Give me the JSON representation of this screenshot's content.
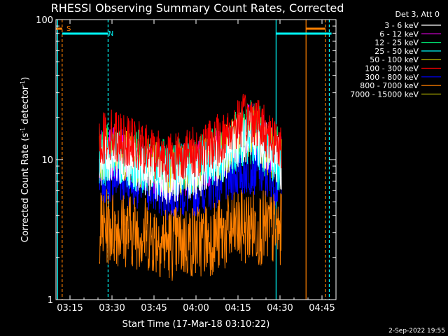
{
  "chart_data": {
    "type": "line",
    "title": "RHESSI Observing Summary Count Rates, Corrected",
    "xlabel": "Start Time (17-Mar-18 03:10:22)",
    "ylabel_main": "Corrected Count Rate (s",
    "ylabel_sup1": "-1",
    "ylabel_mid": " detector",
    "ylabel_sup2": "-1",
    "ylabel_end": ")",
    "y_scale": "log",
    "ylim": [
      1,
      100
    ],
    "x_range_minutes": [
      0,
      100
    ],
    "x_ticks": [
      {
        "label": "03:15",
        "minute": 5
      },
      {
        "label": "03:30",
        "minute": 20
      },
      {
        "label": "03:45",
        "minute": 35
      },
      {
        "label": "04:00",
        "minute": 50
      },
      {
        "label": "04:15",
        "minute": 65
      },
      {
        "label": "04:30",
        "minute": 80
      },
      {
        "label": "04:45",
        "minute": 95
      }
    ],
    "y_ticks": [
      {
        "label": "100",
        "value": 100
      },
      {
        "label": "10",
        "value": 10
      },
      {
        "label": "1",
        "value": 1
      }
    ],
    "legend_title": "Det 3, Att 0",
    "legend_placement": "right",
    "data_interval_minutes": [
      15.5,
      80.5
    ],
    "series": [
      {
        "name": "3 - 6 keV",
        "color": "#ffffff",
        "envelope": [
          [
            15.5,
            12
          ],
          [
            20,
            13
          ],
          [
            30,
            11
          ],
          [
            40,
            9
          ],
          [
            50,
            10
          ],
          [
            60,
            13
          ],
          [
            65,
            17
          ],
          [
            70,
            19
          ],
          [
            75,
            15
          ],
          [
            80.5,
            11
          ]
        ]
      },
      {
        "name": "6 - 12 keV",
        "color": "#ff00ff",
        "envelope": [
          [
            15.5,
            13
          ],
          [
            20,
            14
          ],
          [
            30,
            12
          ],
          [
            40,
            10
          ],
          [
            50,
            11
          ],
          [
            60,
            14
          ],
          [
            65,
            18
          ],
          [
            70,
            21
          ],
          [
            75,
            16
          ],
          [
            80.5,
            12
          ]
        ]
      },
      {
        "name": "12 - 25 keV",
        "color": "#00e070",
        "envelope": [
          [
            15.5,
            14
          ],
          [
            20,
            15
          ],
          [
            30,
            13
          ],
          [
            40,
            11
          ],
          [
            50,
            12
          ],
          [
            60,
            15
          ],
          [
            65,
            20
          ],
          [
            70,
            23
          ],
          [
            75,
            17
          ],
          [
            80.5,
            13
          ]
        ]
      },
      {
        "name": "25 - 50 keV",
        "color": "#00ffff",
        "envelope": [
          [
            15.5,
            12
          ],
          [
            20,
            13
          ],
          [
            30,
            11
          ],
          [
            40,
            10
          ],
          [
            50,
            11
          ],
          [
            60,
            13
          ],
          [
            65,
            16
          ],
          [
            70,
            18
          ],
          [
            75,
            14
          ],
          [
            80.5,
            11
          ]
        ]
      },
      {
        "name": "50 - 100 keV",
        "color": "#d8d800",
        "envelope": [
          [
            15.5,
            13
          ],
          [
            20,
            14
          ],
          [
            30,
            12
          ],
          [
            40,
            10
          ],
          [
            50,
            11
          ],
          [
            60,
            14
          ],
          [
            65,
            18
          ],
          [
            70,
            20
          ],
          [
            75,
            15
          ],
          [
            80.5,
            12
          ]
        ]
      },
      {
        "name": "100 - 300 keV",
        "color": "#ff0000",
        "envelope": [
          [
            15.5,
            17
          ],
          [
            20,
            19
          ],
          [
            30,
            15
          ],
          [
            40,
            13
          ],
          [
            50,
            14
          ],
          [
            60,
            18
          ],
          [
            65,
            23
          ],
          [
            70,
            25
          ],
          [
            75,
            20
          ],
          [
            80.5,
            15
          ]
        ]
      },
      {
        "name": "300 - 800 keV",
        "color": "#0000ff",
        "envelope": [
          [
            15.5,
            9
          ],
          [
            20,
            9.5
          ],
          [
            30,
            8.5
          ],
          [
            40,
            7
          ],
          [
            50,
            7.5
          ],
          [
            60,
            9
          ],
          [
            65,
            10
          ],
          [
            70,
            11
          ],
          [
            75,
            9.5
          ],
          [
            80.5,
            8
          ]
        ]
      },
      {
        "name": "800 - 7000 keV",
        "color": "#ff8000",
        "envelope": [
          [
            15.5,
            4.5
          ],
          [
            20,
            4.5
          ],
          [
            30,
            4.2
          ],
          [
            40,
            3.5
          ],
          [
            50,
            3.6
          ],
          [
            60,
            4
          ],
          [
            65,
            4.4
          ],
          [
            70,
            4.6
          ],
          [
            75,
            4.4
          ],
          [
            80.5,
            4.2
          ]
        ]
      },
      {
        "name": "7000 - 15000 keV",
        "color": "#a0a000",
        "envelope": []
      }
    ],
    "flag_lines": [
      {
        "minute": 0.6,
        "color": "#00ffff",
        "style": "solid"
      },
      {
        "minute": 2.2,
        "color": "#ff8000",
        "style": "dashed"
      },
      {
        "minute": 18.6,
        "color": "#00ffff",
        "style": "dashed"
      },
      {
        "minute": 78.6,
        "color": "#00ffff",
        "style": "solid"
      },
      {
        "minute": 89.3,
        "color": "#ff8000",
        "style": "solid"
      },
      {
        "minute": 96.2,
        "color": "#ff8000",
        "style": "dashed"
      },
      {
        "minute": 97.6,
        "color": "#00ffff",
        "style": "dashed"
      }
    ],
    "flag_bars": [
      {
        "from": 0,
        "to": 2.2,
        "color": "#ff8000",
        "label": "S"
      },
      {
        "from": 2.2,
        "to": 18.6,
        "color": "#00ffff",
        "label": "N"
      },
      {
        "from": 78.6,
        "to": 98.4,
        "color": "#00ffff",
        "label": ""
      },
      {
        "from": 89.3,
        "to": 96.2,
        "color": "#ff8000",
        "label": ""
      }
    ],
    "footer_date": "2-Sep-2022 19:55"
  }
}
